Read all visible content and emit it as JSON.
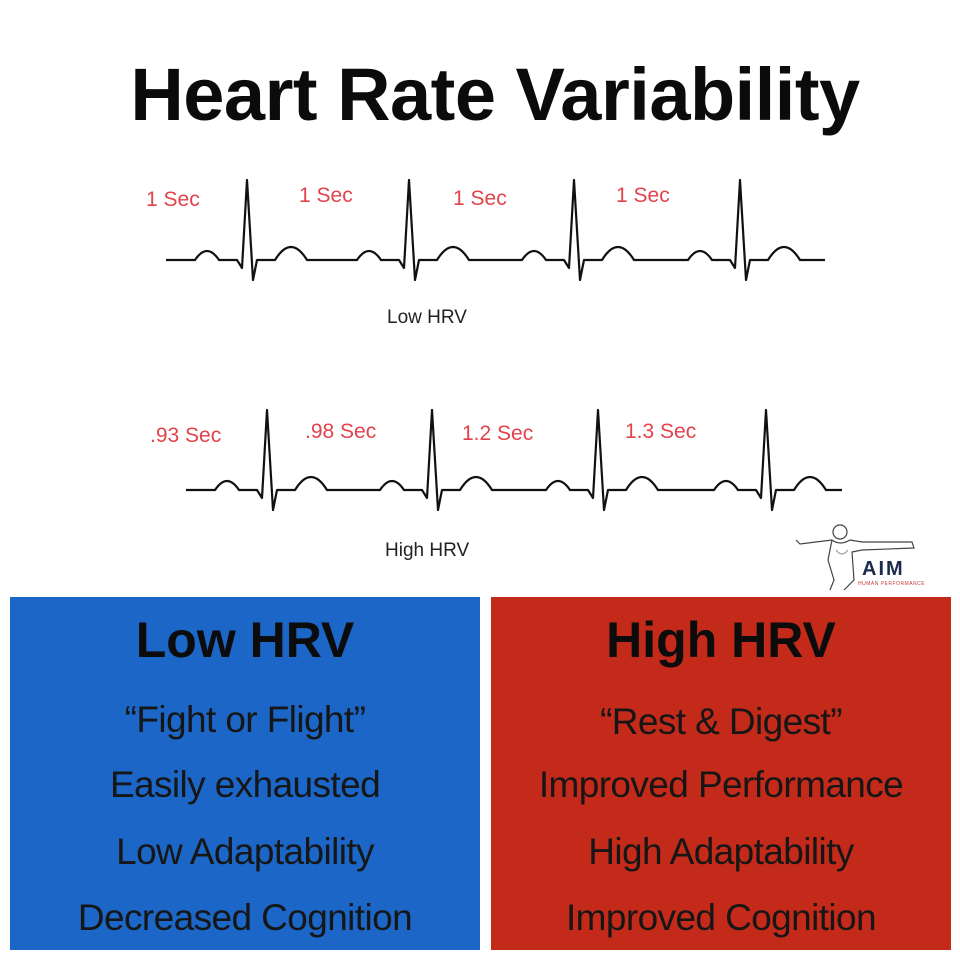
{
  "title": "Heart Rate Variability",
  "low_trace": {
    "intervals": [
      "1 Sec",
      "1 Sec",
      "1 Sec",
      "1 Sec"
    ],
    "caption": "Low HRV"
  },
  "high_trace": {
    "intervals": [
      ".93 Sec",
      ".98 Sec",
      "1.2 Sec",
      "1.3 Sec"
    ],
    "caption": "High HRV"
  },
  "logo": {
    "text": "AIM",
    "subtext": "HUMAN PERFORMANCE"
  },
  "panels": {
    "low": {
      "heading": "Low HRV",
      "items": [
        "“Fight or Flight”",
        "Easily exhausted",
        "Low Adaptability",
        "Decreased Cognition"
      ]
    },
    "high": {
      "heading": "High HRV",
      "items": [
        "“Rest & Digest”",
        "Improved Performance",
        "High Adaptability",
        "Improved Cognition"
      ]
    }
  },
  "colors": {
    "interval_label": "#e2434b",
    "low_panel": "#1b66c6",
    "high_panel": "#c42a1a"
  }
}
